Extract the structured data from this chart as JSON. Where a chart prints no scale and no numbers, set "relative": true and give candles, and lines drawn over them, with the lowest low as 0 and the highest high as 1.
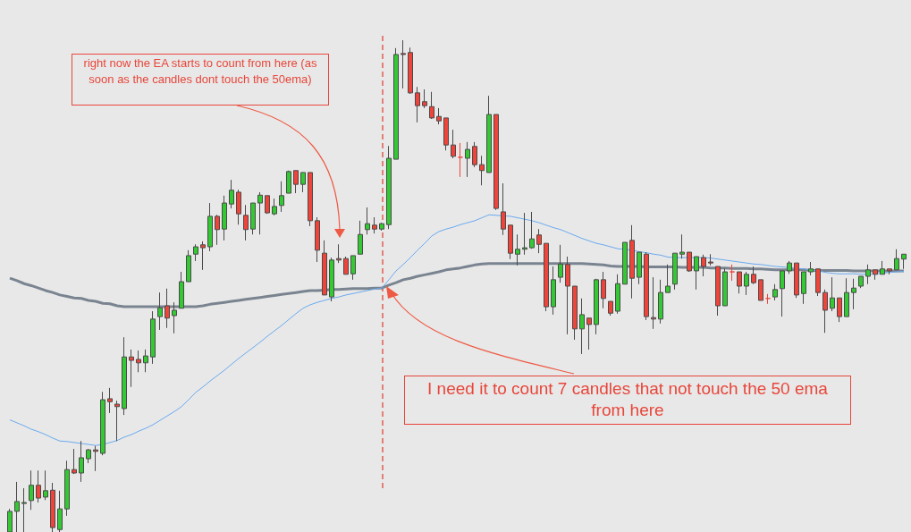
{
  "chart_data": {
    "type": "candlestick",
    "relative": true,
    "tick_labels": false,
    "grid": false,
    "categories": [
      null,
      null,
      null,
      null,
      null,
      null,
      null,
      null,
      null,
      null,
      null,
      null,
      null,
      null,
      null,
      null,
      null,
      null,
      null,
      null,
      null,
      null,
      null,
      null,
      null,
      null,
      null,
      null,
      null,
      null,
      null,
      null,
      null,
      null,
      null,
      null,
      null,
      null,
      null,
      null,
      null,
      null,
      null,
      null,
      null,
      null,
      null,
      null,
      null,
      null,
      null,
      null,
      null,
      null,
      null,
      null,
      null,
      null,
      null,
      null,
      null,
      null,
      null,
      null,
      null,
      null,
      null,
      null,
      null,
      null,
      null,
      null,
      null,
      null,
      null,
      null,
      null,
      null,
      null,
      null,
      null,
      null,
      null,
      null,
      null,
      null,
      null,
      null,
      null,
      null,
      null,
      null,
      null,
      null,
      null,
      null,
      null,
      null,
      null,
      null,
      null,
      null,
      null,
      null,
      null,
      null,
      null,
      null,
      null,
      null,
      null,
      null,
      null,
      null,
      null,
      null,
      null,
      null,
      null,
      null,
      null,
      null,
      null,
      null,
      null,
      null
    ],
    "ohlc": [
      [
        0,
        0.047,
        0,
        0.042
      ],
      [
        0.042,
        0.102,
        0,
        0.062
      ],
      [
        0.058,
        0.089,
        0,
        0.06
      ],
      [
        0.064,
        0.125,
        0.045,
        0.095
      ],
      [
        0.095,
        0.125,
        0.06,
        0.069
      ],
      [
        0.071,
        0.125,
        0.065,
        0.084
      ],
      [
        0.085,
        0.1,
        0,
        0.009
      ],
      [
        0.005,
        0.084,
        0,
        0.047
      ],
      [
        0.047,
        0.145,
        0.033,
        0.127
      ],
      [
        0.127,
        0.169,
        0.118,
        0.12
      ],
      [
        0.12,
        0.185,
        0.102,
        0.151
      ],
      [
        0.149,
        0.169,
        0.14,
        0.167
      ],
      [
        0.167,
        0.175,
        0.124,
        0.164
      ],
      [
        0.16,
        0.285,
        0.156,
        0.269
      ],
      [
        0.271,
        0.293,
        0.242,
        0.265
      ],
      [
        0.26,
        0.267,
        0.185,
        0.255
      ],
      [
        0.251,
        0.396,
        0.238,
        0.356
      ],
      [
        0.356,
        0.371,
        0.295,
        0.349
      ],
      [
        0.351,
        0.369,
        0.325,
        0.344
      ],
      [
        0.344,
        0.371,
        0.325,
        0.358
      ],
      [
        0.356,
        0.449,
        0.342,
        0.433
      ],
      [
        0.438,
        0.487,
        0.411,
        0.456
      ],
      [
        0.46,
        0.495,
        0.415,
        0.435
      ],
      [
        0.44,
        0.467,
        0.404,
        0.451
      ],
      [
        0.455,
        0.529,
        0.455,
        0.509
      ],
      [
        0.509,
        0.573,
        0.509,
        0.562
      ],
      [
        0.565,
        0.585,
        0.551,
        0.58
      ],
      [
        0.584,
        0.591,
        0.533,
        0.578
      ],
      [
        0.58,
        0.669,
        0.571,
        0.642
      ],
      [
        0.642,
        0.645,
        0.584,
        0.615
      ],
      [
        0.616,
        0.684,
        0.593,
        0.669
      ],
      [
        0.667,
        0.716,
        0.658,
        0.695
      ],
      [
        0.691,
        0.696,
        0.625,
        0.647
      ],
      [
        0.644,
        0.665,
        0.593,
        0.615
      ],
      [
        0.616,
        0.669,
        0.605,
        0.669
      ],
      [
        0.669,
        0.691,
        0.605,
        0.685
      ],
      [
        0.684,
        0.684,
        0.647,
        0.649
      ],
      [
        0.647,
        0.678,
        0.644,
        0.662
      ],
      [
        0.664,
        0.713,
        0.651,
        0.684
      ],
      [
        0.689,
        0.735,
        0.689,
        0.733
      ],
      [
        0.735,
        0.735,
        0.689,
        0.707
      ],
      [
        0.707,
        0.731,
        0.691,
        0.731
      ],
      [
        0.731,
        0.731,
        0.622,
        0.633
      ],
      [
        0.633,
        0.64,
        0.549,
        0.573
      ],
      [
        0.567,
        0.593,
        0.482,
        0.482
      ],
      [
        0.478,
        0.558,
        0.469,
        0.553
      ],
      [
        0.556,
        0.585,
        0.547,
        0.553
      ],
      [
        0.556,
        0.56,
        0.524,
        0.524
      ],
      [
        0.525,
        0.562,
        0.513,
        0.562
      ],
      [
        0.565,
        0.633,
        0.565,
        0.605
      ],
      [
        0.615,
        0.66,
        0.605,
        0.627
      ],
      [
        0.624,
        0.64,
        0.607,
        0.616
      ],
      [
        0.616,
        0.629,
        0.613,
        0.627
      ],
      [
        0.625,
        0.785,
        0.616,
        0.76
      ],
      [
        0.758,
        0.984,
        0.758,
        0.971
      ],
      [
        0.973,
        1,
        0.902,
        0.971
      ],
      [
        0.975,
        0.985,
        0.891,
        0.893
      ],
      [
        0.893,
        0.905,
        0.833,
        0.867
      ],
      [
        0.875,
        0.9,
        0.862,
        0.867
      ],
      [
        0.865,
        0.895,
        0.84,
        0.842
      ],
      [
        0.845,
        0.862,
        0.829,
        0.836
      ],
      [
        0.842,
        0.842,
        0.776,
        0.787
      ],
      [
        0.787,
        0.818,
        0.76,
        0.764
      ],
      [
        0.762,
        0.791,
        0.722,
        0.762
      ],
      [
        0.76,
        0.793,
        0.722,
        0.778
      ],
      [
        0.784,
        0.793,
        0.742,
        0.747
      ],
      [
        0.747,
        0.765,
        0.705,
        0.735
      ],
      [
        0.731,
        0.887,
        0.731,
        0.849
      ],
      [
        0.849,
        0.849,
        0.655,
        0.658
      ],
      [
        0.651,
        0.709,
        0.604,
        0.616
      ],
      [
        0.624,
        0.624,
        0.555,
        0.567
      ],
      [
        0.565,
        0.605,
        0.542,
        0.575
      ],
      [
        0.575,
        0.649,
        0.564,
        0.578
      ],
      [
        0.578,
        0.651,
        0.576,
        0.596
      ],
      [
        0.604,
        0.616,
        0.567,
        0.585
      ],
      [
        0.587,
        0.587,
        0.449,
        0.458
      ],
      [
        0.458,
        0.54,
        0.442,
        0.513
      ],
      [
        0.518,
        0.584,
        0.507,
        0.545
      ],
      [
        0.544,
        0.56,
        0.402,
        0.5
      ],
      [
        0.5,
        0.5,
        0.391,
        0.413
      ],
      [
        0.413,
        0.475,
        0.362,
        0.442
      ],
      [
        0.435,
        0.435,
        0.371,
        0.422
      ],
      [
        0.422,
        0.515,
        0.402,
        0.513
      ],
      [
        0.513,
        0.529,
        0.455,
        0.475
      ],
      [
        0.469,
        0.469,
        0.44,
        0.445
      ],
      [
        0.449,
        0.524,
        0.444,
        0.505
      ],
      [
        0.504,
        0.589,
        0.504,
        0.589
      ],
      [
        0.593,
        0.624,
        0.475,
        0.516
      ],
      [
        0.518,
        0.569,
        0.504,
        0.569
      ],
      [
        0.565,
        0.569,
        0.431,
        0.438
      ],
      [
        0.436,
        0.518,
        0.413,
        0.433
      ],
      [
        0.433,
        0.513,
        0.424,
        0.487
      ],
      [
        0.487,
        0.544,
        0.487,
        0.5
      ],
      [
        0.504,
        0.567,
        0.493,
        0.567
      ],
      [
        0.565,
        0.605,
        0.556,
        0.569
      ],
      [
        0.569,
        0.569,
        0.529,
        0.531
      ],
      [
        0.531,
        0.56,
        0.493,
        0.56
      ],
      [
        0.558,
        0.564,
        0.52,
        0.54
      ],
      [
        0.549,
        0.565,
        0.542,
        0.547
      ],
      [
        0.54,
        0.54,
        0.44,
        0.46
      ],
      [
        0.46,
        0.536,
        0.46,
        0.529
      ],
      [
        0.529,
        0.544,
        0.511,
        0.529
      ],
      [
        0.529,
        0.529,
        0.485,
        0.5
      ],
      [
        0.5,
        0.529,
        0.482,
        0.524
      ],
      [
        0.524,
        0.54,
        0.504,
        0.507
      ],
      [
        0.513,
        0.513,
        0.471,
        0.471
      ],
      [
        0.475,
        0.484,
        0.464,
        0.475
      ],
      [
        0.478,
        0.504,
        0.471,
        0.493
      ],
      [
        0.495,
        0.531,
        0.438,
        0.531
      ],
      [
        0.531,
        0.551,
        0.525,
        0.547
      ],
      [
        0.547,
        0.547,
        0.476,
        0.482
      ],
      [
        0.485,
        0.529,
        0.464,
        0.529
      ],
      [
        0.529,
        0.549,
        0.522,
        0.535
      ],
      [
        0.535,
        0.535,
        0.48,
        0.487
      ],
      [
        0.487,
        0.493,
        0.405,
        0.451
      ],
      [
        0.455,
        0.518,
        0.449,
        0.476
      ],
      [
        0.476,
        0.476,
        0.427,
        0.438
      ],
      [
        0.438,
        0.516,
        0.438,
        0.487
      ],
      [
        0.487,
        0.515,
        0.453,
        0.496
      ],
      [
        0.5,
        0.52,
        0.496,
        0.52
      ],
      [
        0.52,
        0.544,
        0.504,
        0.533
      ],
      [
        0.533,
        0.533,
        0.513,
        0.524
      ],
      [
        0.524,
        0.551,
        0.524,
        0.535
      ],
      [
        0.535,
        0.535,
        0.524,
        0.531
      ],
      [
        0.533,
        0.575,
        0.533,
        0.556
      ],
      [
        0.555,
        0.565,
        0.535,
        0.565
      ]
    ],
    "colors": [
      "#33c933",
      "#33c933",
      "#33c933",
      "#33c933",
      "#f0443a",
      "#33c933",
      "#f0443a",
      "#33c933",
      "#33c933",
      "#f0443a",
      "#33c933",
      "#33c933",
      "#f0443a",
      "#33c933",
      "#f0443a",
      "#f0443a",
      "#33c933",
      "#f0443a",
      "#f0443a",
      "#33c933",
      "#33c933",
      "#33c933",
      "#f0443a",
      "#33c933",
      "#33c933",
      "#33c933",
      "#33c933",
      "#f0443a",
      "#33c933",
      "#f0443a",
      "#33c933",
      "#33c933",
      "#f0443a",
      "#f0443a",
      "#33c933",
      "#33c933",
      "#f0443a",
      "#33c933",
      "#33c933",
      "#33c933",
      "#f0443a",
      "#33c933",
      "#f0443a",
      "#f0443a",
      "#f0443a",
      "#33c933",
      "#f0443a",
      "#f0443a",
      "#33c933",
      "#33c933",
      "#33c933",
      "#f0443a",
      "#33c933",
      "#33c933",
      "#33c933",
      "#f0443a",
      "#f0443a",
      "#f0443a",
      "#f0443a",
      "#f0443a",
      "#f0443a",
      "#f0443a",
      "#f0443a",
      "#f0443a",
      "#33c933",
      "#f0443a",
      "#f0443a",
      "#33c933",
      "#f0443a",
      "#f0443a",
      "#f0443a",
      "#33c933",
      "#33c933",
      "#33c933",
      "#f0443a",
      "#f0443a",
      "#33c933",
      "#33c933",
      "#f0443a",
      "#f0443a",
      "#33c933",
      "#f0443a",
      "#33c933",
      "#f0443a",
      "#f0443a",
      "#33c933",
      "#33c933",
      "#f0443a",
      "#33c933",
      "#f0443a",
      "#f0443a",
      "#33c933",
      "#33c933",
      "#33c933",
      "#33c933",
      "#f0443a",
      "#33c933",
      "#f0443a",
      "#f0443a",
      "#f0443a",
      "#33c933",
      "#f0443a",
      "#f0443a",
      "#33c933",
      "#f0443a",
      "#f0443a",
      "#f0443a",
      "#33c933",
      "#33c933",
      "#33c933",
      "#f0443a",
      "#33c933",
      "#33c933",
      "#f0443a",
      "#f0443a",
      "#33c933",
      "#f0443a",
      "#33c933",
      "#33c933",
      "#33c933",
      "#33c933",
      "#f0443a",
      "#33c933",
      "#f0443a",
      "#33c933",
      "#33c933"
    ],
    "series": [
      {
        "type": "line",
        "color": "#7a8490",
        "values": [
          0.516,
          0.511,
          0.505,
          0.501,
          0.496,
          0.491,
          0.487,
          0.482,
          0.479,
          0.476,
          0.475,
          0.471,
          0.469,
          0.465,
          0.464,
          0.46,
          0.458,
          0.458,
          0.458,
          0.458,
          0.458,
          0.458,
          0.458,
          0.458,
          0.458,
          0.458,
          0.458,
          0.46,
          0.463,
          0.465,
          0.467,
          0.469,
          0.471,
          0.473,
          0.475,
          0.477,
          0.479,
          0.481,
          0.483,
          0.485,
          0.487,
          0.489,
          0.491,
          0.491,
          0.492,
          0.493,
          0.493,
          0.494,
          0.495,
          0.495,
          0.495,
          0.496,
          0.496,
          0.502,
          0.507,
          0.513,
          0.516,
          0.52,
          0.523,
          0.526,
          0.529,
          0.533,
          0.535,
          0.537,
          0.54,
          0.543,
          0.545,
          0.546,
          0.546,
          0.546,
          0.546,
          0.546,
          0.546,
          0.546,
          0.546,
          0.546,
          0.546,
          0.546,
          0.546,
          0.546,
          0.546,
          0.545,
          0.544,
          0.543,
          0.541,
          0.54,
          0.54,
          0.54,
          0.54,
          0.539,
          0.539,
          0.539,
          0.539,
          0.539,
          0.538,
          0.538,
          0.538,
          0.538,
          0.537,
          0.537,
          0.537,
          0.536,
          0.536,
          0.536,
          0.535,
          0.535,
          0.534,
          0.533,
          0.533,
          0.533,
          0.533,
          0.533,
          0.532,
          0.532,
          0.532,
          0.532,
          0.532,
          0.532,
          0.531,
          0.531,
          0.531,
          0.531,
          0.531,
          0.531,
          0.531,
          0.531
        ]
      },
      {
        "type": "line",
        "color": "#6aaaf0",
        "values": [
          0.228,
          0.222,
          0.216,
          0.209,
          0.204,
          0.198,
          0.191,
          0.185,
          0.184,
          0.182,
          0.18,
          0.178,
          0.176,
          0.178,
          0.182,
          0.186,
          0.193,
          0.198,
          0.205,
          0.211,
          0.218,
          0.227,
          0.236,
          0.245,
          0.255,
          0.269,
          0.284,
          0.295,
          0.307,
          0.318,
          0.329,
          0.341,
          0.353,
          0.364,
          0.375,
          0.386,
          0.398,
          0.409,
          0.42,
          0.432,
          0.444,
          0.455,
          0.462,
          0.467,
          0.471,
          0.475,
          0.478,
          0.482,
          0.485,
          0.488,
          0.491,
          0.494,
          0.496,
          0.513,
          0.531,
          0.544,
          0.558,
          0.573,
          0.587,
          0.602,
          0.611,
          0.616,
          0.62,
          0.625,
          0.629,
          0.633,
          0.639,
          0.645,
          0.644,
          0.643,
          0.642,
          0.639,
          0.636,
          0.633,
          0.629,
          0.624,
          0.619,
          0.615,
          0.609,
          0.603,
          0.597,
          0.592,
          0.587,
          0.584,
          0.58,
          0.576,
          0.575,
          0.573,
          0.57,
          0.568,
          0.565,
          0.563,
          0.559,
          0.558,
          0.558,
          0.558,
          0.558,
          0.558,
          0.557,
          0.555,
          0.553,
          0.551,
          0.549,
          0.547,
          0.545,
          0.544,
          0.542,
          0.54,
          0.539,
          0.538,
          0.536,
          0.535,
          0.533,
          0.531,
          0.528,
          0.526,
          0.525,
          0.525,
          0.525,
          0.524,
          0.524,
          0.525,
          0.526,
          0.528,
          0.529,
          0.53
        ]
      }
    ],
    "annotations": [
      "right now the EA starts to count from here (as soon as the candles dont touch the 50ema)",
      "I need it to count 7 candles that not touch the 50 ema  from here"
    ]
  }
}
